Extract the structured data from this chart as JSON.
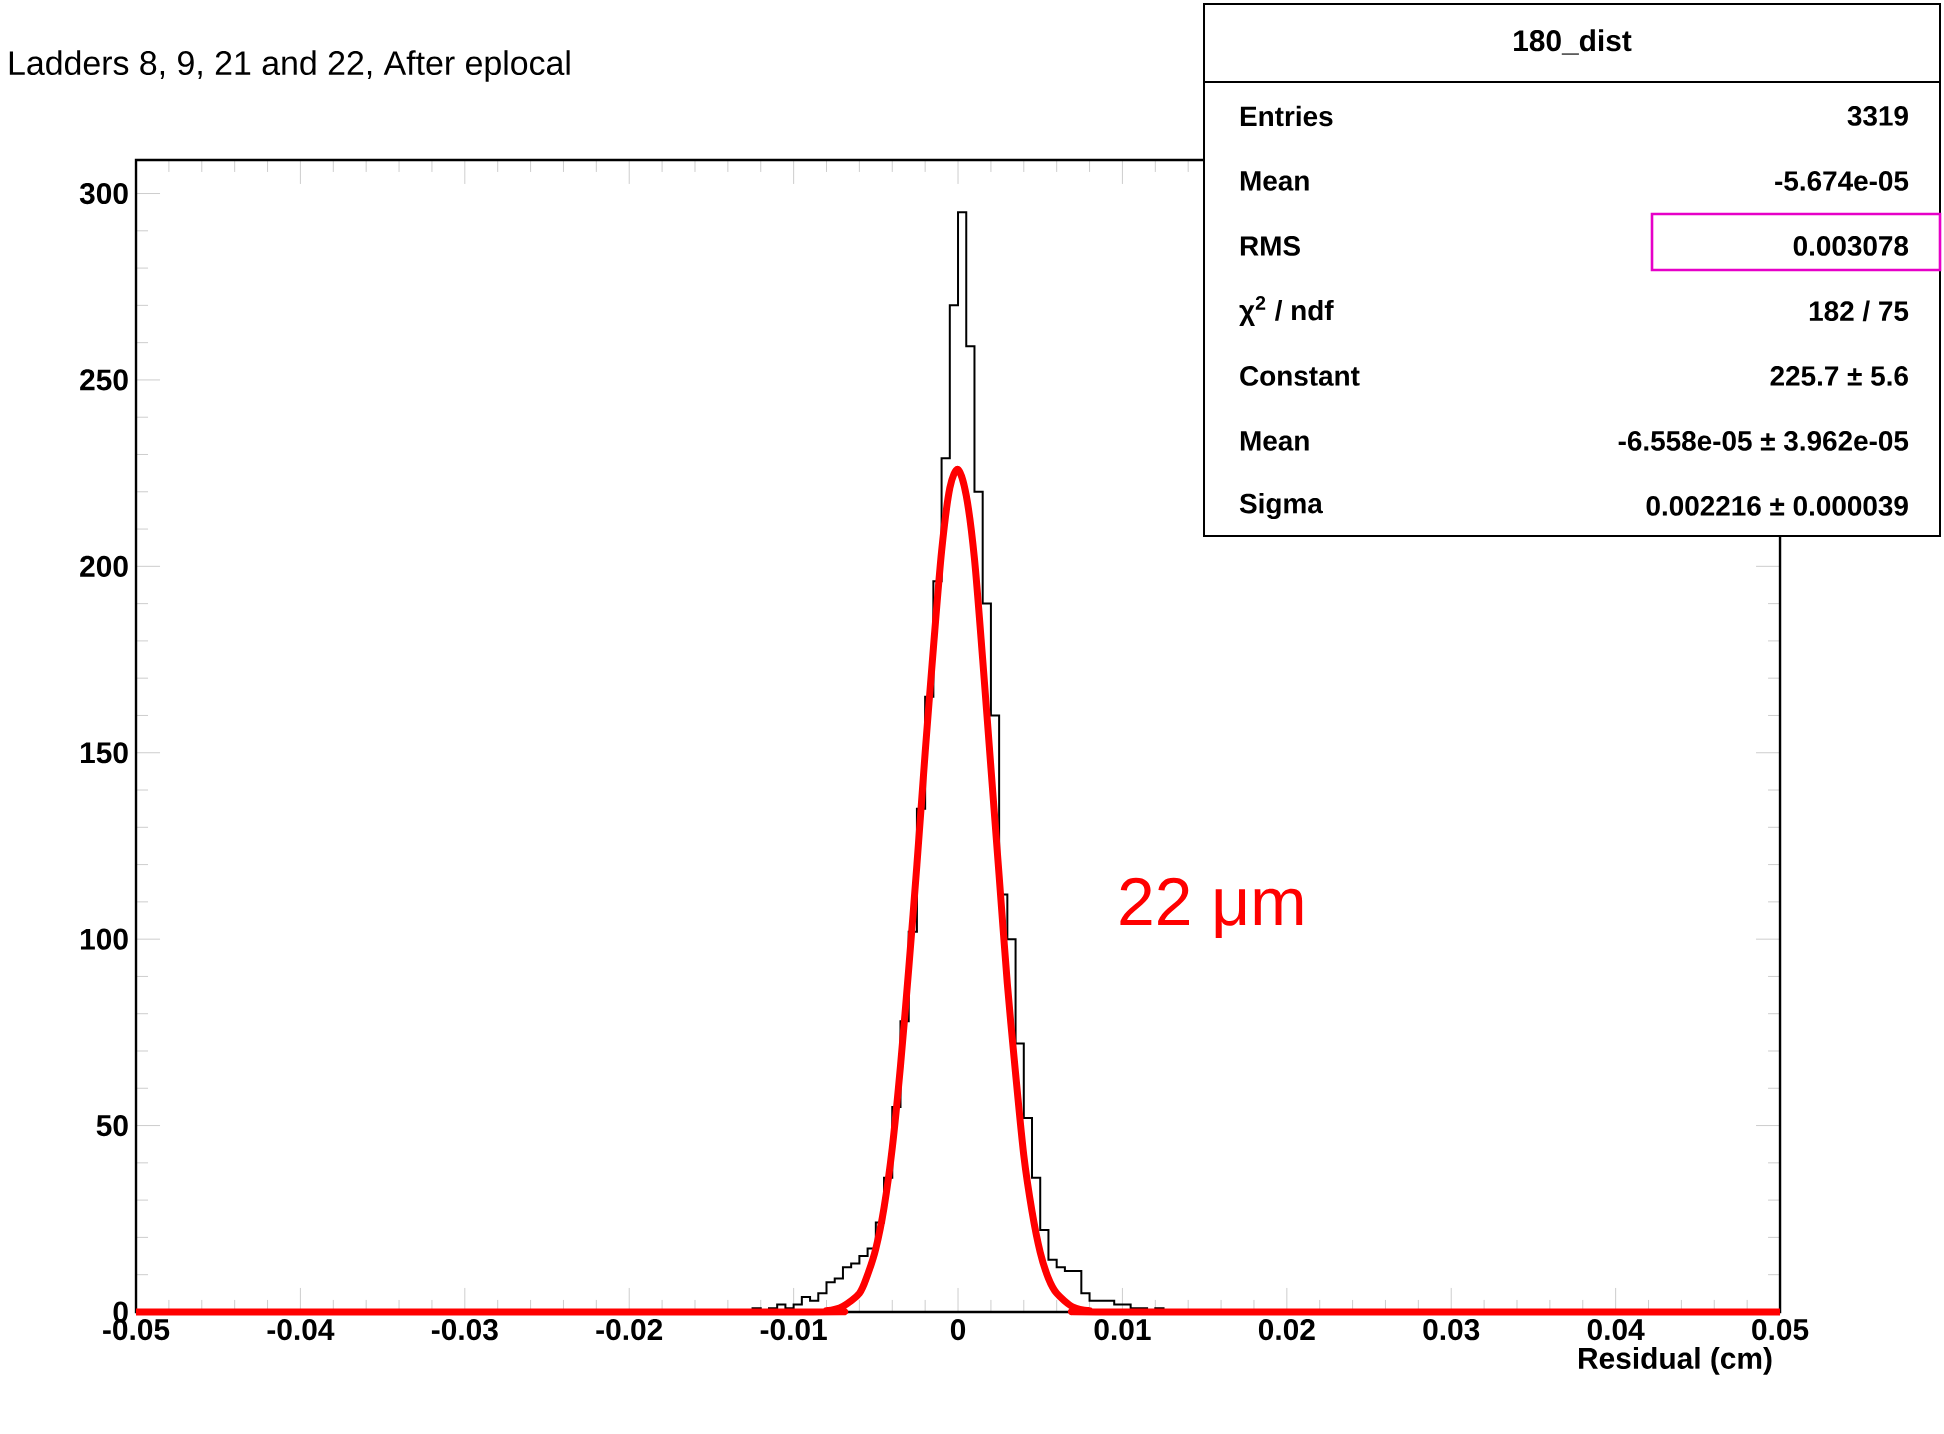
{
  "chart_data": {
    "type": "histogram",
    "title": "Ladders 8, 9, 21 and 22, After eplocal",
    "xlabel": "Residual (cm)",
    "annotations": [
      "180_dist",
      "Entries",
      "3319",
      "Mean",
      "-5.674e-05",
      "RMS",
      "0.003078",
      "χ$^{2}$ / ndf",
      "182 / 75",
      "Constant",
      "225.7 ± 5.6",
      "Mean",
      "-6.558e-05 ± 3.962e-05",
      "Sigma",
      "0.002216 ± 0.000039",
      "22 μm"
    ],
    "series": [
      {
        "type": "histogram",
        "color": "#000000",
        "bins": [
          -0.05,
          -0.0125,
          -0.012,
          -0.0115,
          -0.011,
          -0.0105,
          -0.01,
          -0.0095,
          -0.009,
          -0.0085,
          -0.008,
          -0.0075,
          -0.007,
          -0.0065,
          -0.006,
          -0.0055,
          -0.005,
          -0.0045,
          -0.004,
          -0.0035,
          -0.003,
          -0.0025,
          -0.002,
          -0.0015,
          -0.001,
          -0.0005,
          0,
          0.0005,
          0.001,
          0.0015,
          0.002,
          0.0025,
          0.003,
          0.0035,
          0.004,
          0.0045,
          0.005,
          0.0055,
          0.006,
          0.0065,
          0.007,
          0.0075,
          0.008,
          0.0085,
          0.009,
          0.0095,
          0.01,
          0.0105,
          0.011,
          0.0115,
          0.012,
          0.0125,
          0.05
        ],
        "values": [
          0,
          1,
          0,
          1,
          2,
          1,
          2,
          4,
          3,
          5,
          8,
          9,
          12,
          13,
          15,
          17,
          24,
          36,
          55,
          78,
          102,
          135,
          165,
          196,
          229,
          270,
          295,
          259,
          220,
          190,
          160,
          112,
          100,
          72,
          52,
          36,
          22,
          14,
          12,
          11,
          11,
          5,
          3,
          3,
          3,
          2,
          2,
          1,
          1,
          0,
          1,
          0
        ]
      },
      {
        "type": "line",
        "color": "#ff0000",
        "x": [
          -0.05,
          -0.01,
          -0.008,
          -0.007,
          -0.006,
          -0.0055,
          -0.005,
          -0.0045,
          -0.004,
          -0.0035,
          -0.003,
          -0.0025,
          -0.002,
          -0.0015,
          -0.001,
          -0.0005,
          0,
          0.0005,
          0.001,
          0.0015,
          0.002,
          0.0025,
          0.003,
          0.0035,
          0.004,
          0.0045,
          0.005,
          0.0055,
          0.006,
          0.007,
          0.008,
          0.01,
          0.05
        ],
        "values": [
          0,
          0,
          0.3,
          1.5,
          5,
          10,
          17,
          28,
          44,
          66,
          92,
          120,
          150,
          178,
          204,
          221,
          226,
          219,
          202,
          175,
          146,
          117,
          88,
          64,
          42,
          27,
          16,
          9,
          5,
          1.3,
          0.3,
          0,
          0
        ]
      }
    ],
    "xlim": [
      -0.05,
      0.05
    ],
    "ylim": [
      0,
      309
    ],
    "xticks": [
      -0.05,
      -0.04,
      -0.03,
      -0.02,
      -0.01,
      0,
      0.01,
      0.02,
      0.03,
      0.04,
      0.05
    ],
    "yticks": [
      0,
      50,
      100,
      150,
      200,
      250,
      300
    ]
  }
}
